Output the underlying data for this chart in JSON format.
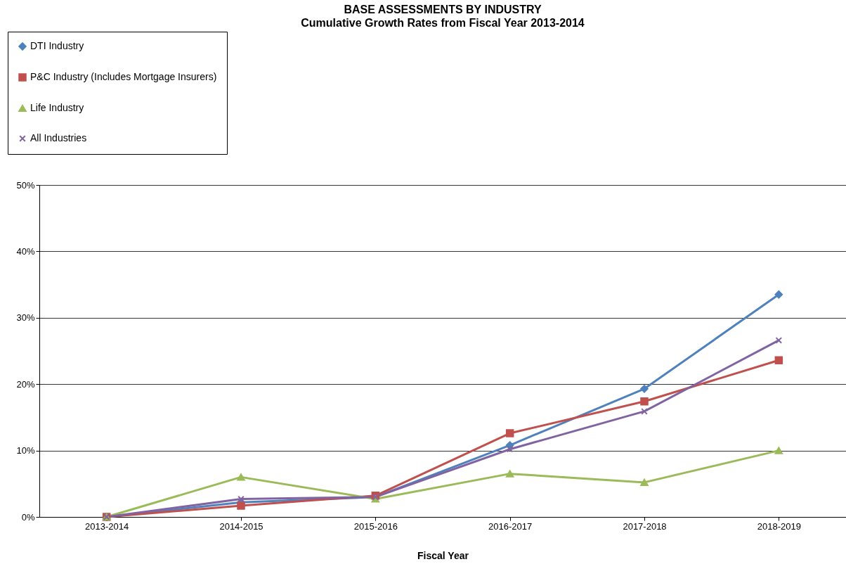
{
  "chart_data": {
    "type": "line",
    "title": "BASE ASSESSMENTS BY INDUSTRY",
    "subtitle": "Cumulative Growth Rates from Fiscal Year 2013-2014",
    "xlabel": "Fiscal Year",
    "categories": [
      "2013-2014",
      "2014-2015",
      "2015-2016",
      "2016-2017",
      "2017-2018",
      "2018-2019"
    ],
    "series": [
      {
        "name": "DTI Industry",
        "color": "#4f81bd",
        "marker": "diamond",
        "values": [
          0,
          2.2,
          3.0,
          10.8,
          19.3,
          33.5
        ]
      },
      {
        "name": "P&C Industry (Includes Mortgage Insurers)",
        "color": "#c0504d",
        "marker": "square",
        "values": [
          0,
          1.7,
          3.2,
          12.6,
          17.4,
          23.6
        ]
      },
      {
        "name": "Life Industry",
        "color": "#9bbb59",
        "marker": "triangle",
        "values": [
          0,
          6.0,
          2.7,
          6.5,
          5.2,
          10.0
        ]
      },
      {
        "name": "All Industries",
        "color": "#8064a2",
        "marker": "cross",
        "values": [
          0,
          2.7,
          3.0,
          10.2,
          15.9,
          26.6
        ]
      }
    ],
    "ylim": [
      0,
      50
    ],
    "yticks": [
      {
        "value": 0,
        "label": "0%"
      },
      {
        "value": 10,
        "label": "10%"
      },
      {
        "value": 20,
        "label": "20%"
      },
      {
        "value": 30,
        "label": "30%"
      },
      {
        "value": 40,
        "label": "40%"
      },
      {
        "value": 50,
        "label": "50%"
      }
    ],
    "grid": "y",
    "legend": "top left",
    "line_style": "solid"
  }
}
